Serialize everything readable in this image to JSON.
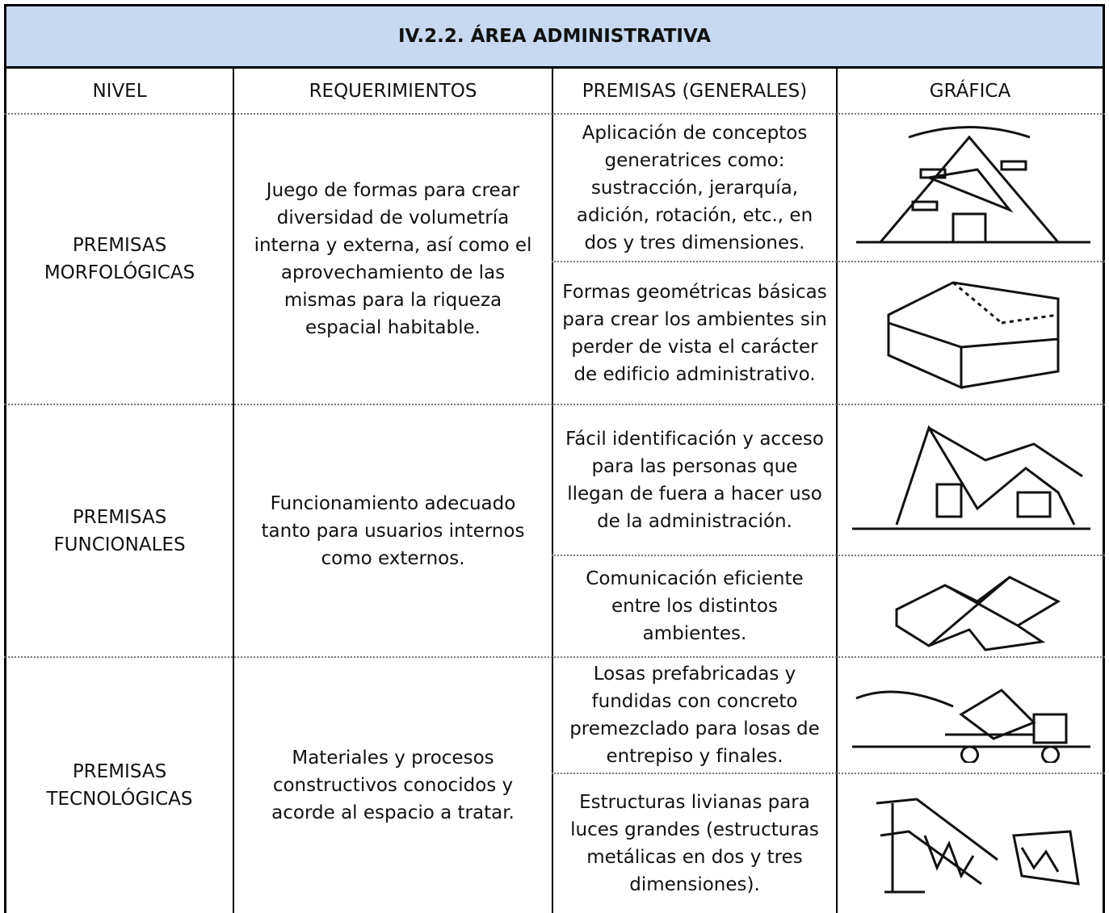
{
  "table": {
    "title": "IV.2.2. ÁREA ADMINISTRATIVA",
    "headers": [
      "NIVEL",
      "REQUERIMIENTOS",
      "PREMISAS (GENERALES)",
      "GRÁFICA"
    ],
    "sections": [
      {
        "nivel": "PREMISAS MORFOLÓGICAS",
        "requerimiento": "Juego de formas para crear diversidad de volumetría interna y externa, así como el aprovechamiento de las mismas para la riqueza espacial habitable.",
        "premisas": [
          "Aplicación de conceptos generatrices como: sustracción, jerarquía, adición, rotación, etc., en dos y tres dimensiones.",
          "Formas geométricas básicas para crear los ambientes sin perder de vista el carácter de edificio administrativo."
        ]
      },
      {
        "nivel": "PREMISAS FUNCIONALES",
        "requerimiento": "Funcionamiento adecuado tanto para usuarios internos como externos.",
        "premisas": [
          "Fácil identificación y acceso para las personas que llegan de fuera a hacer uso de la administración.",
          "Comunicación eficiente entre los distintos ambientes."
        ]
      },
      {
        "nivel": "PREMISAS TECNOLÓGICAS",
        "requerimiento": "Materiales y procesos constructivos conocidos y acorde al espacio a tratar.",
        "premisas": [
          "Losas prefabricadas y fundidas con concreto premezclado para losas de entrepiso y finales.",
          "Estructuras livianas para luces grandes (estructuras metálicas en dos y tres dimensiones)."
        ]
      }
    ]
  }
}
